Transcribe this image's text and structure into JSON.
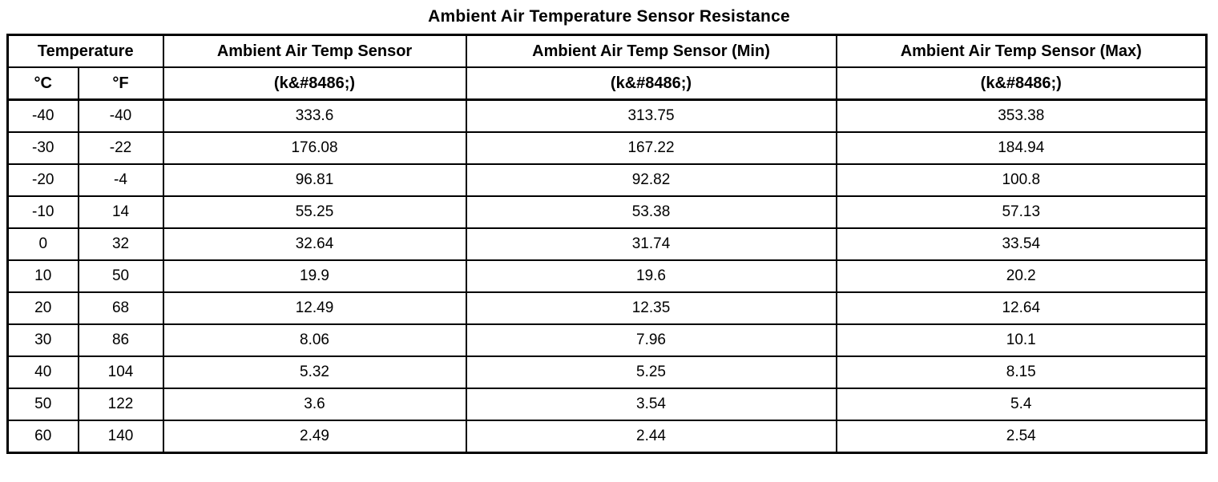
{
  "title": "Ambient Air Temperature Sensor Resistance",
  "table": {
    "header": {
      "temperature_group": "Temperature",
      "col_c": "°C",
      "col_f": "°F",
      "sensor": "Ambient Air Temp Sensor",
      "sensor_min": "Ambient Air Temp Sensor (Min)",
      "sensor_max": "Ambient Air Temp Sensor (Max)",
      "unit": "(k&#8486;)"
    },
    "rows": [
      {
        "c": "-40",
        "f": "-40",
        "sensor": "333.6",
        "min": "313.75",
        "max": "353.38"
      },
      {
        "c": "-30",
        "f": "-22",
        "sensor": "176.08",
        "min": "167.22",
        "max": "184.94"
      },
      {
        "c": "-20",
        "f": "-4",
        "sensor": "96.81",
        "min": "92.82",
        "max": "100.8"
      },
      {
        "c": "-10",
        "f": "14",
        "sensor": "55.25",
        "min": "53.38",
        "max": "57.13"
      },
      {
        "c": "0",
        "f": "32",
        "sensor": "32.64",
        "min": "31.74",
        "max": "33.54"
      },
      {
        "c": "10",
        "f": "50",
        "sensor": "19.9",
        "min": "19.6",
        "max": "20.2"
      },
      {
        "c": "20",
        "f": "68",
        "sensor": "12.49",
        "min": "12.35",
        "max": "12.64"
      },
      {
        "c": "30",
        "f": "86",
        "sensor": "8.06",
        "min": "7.96",
        "max": "10.1"
      },
      {
        "c": "40",
        "f": "104",
        "sensor": "5.32",
        "min": "5.25",
        "max": "8.15"
      },
      {
        "c": "50",
        "f": "122",
        "sensor": "3.6",
        "min": "3.54",
        "max": "5.4"
      },
      {
        "c": "60",
        "f": "140",
        "sensor": "2.49",
        "min": "2.44",
        "max": "2.54"
      }
    ]
  },
  "colors": {
    "border": "#000000",
    "text": "#000000",
    "background": "#ffffff"
  }
}
